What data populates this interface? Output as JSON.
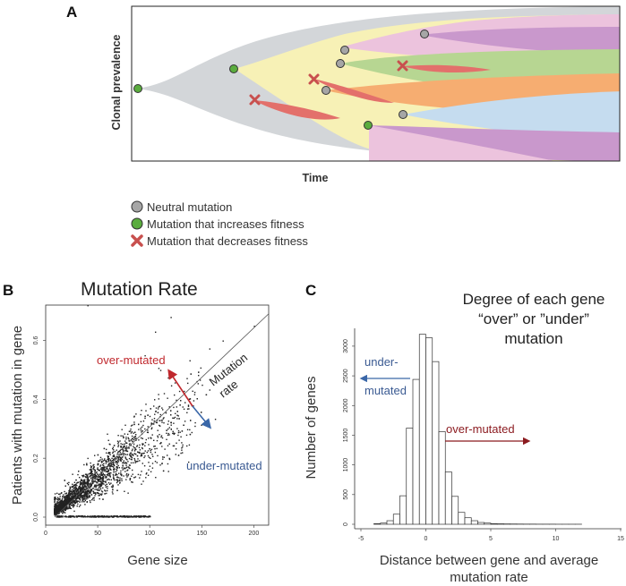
{
  "panelA": {
    "letter": "A",
    "ylabel": "Clonal prevalence",
    "xlabel": "Time",
    "legend": [
      {
        "label": "Neutral mutation",
        "marker": "grey-circle",
        "color": "#a6a6a6"
      },
      {
        "label": "Mutation that increases fitness",
        "marker": "green-circle",
        "color": "#5aac3e"
      },
      {
        "label": "Mutation that decreases fitness",
        "marker": "red-cross",
        "color": "#c8504e"
      }
    ],
    "colors": {
      "grey": "#d3d6d9",
      "yellow": "#f7f1b6",
      "pink": "#ecc3dd",
      "green": "#b7d692",
      "orange": "#f6ad71",
      "purple": "#c998cc",
      "blue": "#c5dcef",
      "red": "#e3706b"
    }
  },
  "panelB": {
    "letter": "B",
    "title": "Mutation Rate",
    "annotations": {
      "over": "over-mutated",
      "under": "under-mutated",
      "line1": "Mutation",
      "line2": "rate"
    },
    "chart_data": {
      "type": "scatter",
      "title": "Mutation Rate",
      "xlabel": "Gene size",
      "ylabel": "Patients with mutation in gene",
      "xlim": [
        0,
        210
      ],
      "ylim": [
        0,
        0.72
      ],
      "xticks": [
        "0",
        "50",
        "100",
        "150",
        "200"
      ],
      "yticks": [
        "0.0",
        "0.2",
        "0.4",
        "0.6"
      ],
      "trend_line": {
        "x": [
          0,
          210
        ],
        "y": [
          0.0,
          0.66
        ]
      },
      "cloud": {
        "x_peak": 30,
        "description": "dense cloud of gene points, highest density near x=20-60, y=0.0-0.2"
      }
    }
  },
  "panelC": {
    "letter": "C",
    "title_lines": [
      "Degree of each gene",
      "“over” or ”under”",
      "mutation"
    ],
    "annotations": {
      "under1": "under-",
      "under2": "mutated",
      "over": "over-mutated"
    },
    "chart_data": {
      "type": "bar",
      "title": "Degree of each gene “over” or ”under” mutation",
      "xlabel_lines": [
        "Distance between gene and average",
        "mutation rate"
      ],
      "ylabel": "Number of genes",
      "xlim": [
        -5,
        15
      ],
      "ylim": [
        0,
        3300
      ],
      "xticks": [
        "-5",
        "0",
        "5",
        "10",
        "15"
      ],
      "yticks": [
        "0",
        "500",
        "1000",
        "1500",
        "2000",
        "2500",
        "3000"
      ],
      "bin_width": 0.5,
      "bin_starts": [
        -4,
        -3.5,
        -3,
        -2.5,
        -2,
        -1.5,
        -1,
        -0.5,
        0,
        0.5,
        1,
        1.5,
        2,
        2.5,
        3,
        3.5,
        4,
        4.5,
        5,
        5.5,
        6,
        6.5,
        7,
        7.5,
        8,
        8.5,
        9,
        9.5,
        10,
        10.5,
        11,
        11.5
      ],
      "values": [
        10,
        20,
        60,
        170,
        480,
        1620,
        2440,
        3200,
        3140,
        2740,
        1560,
        880,
        470,
        200,
        110,
        60,
        30,
        20,
        10,
        8,
        6,
        5,
        4,
        3,
        3,
        2,
        2,
        2,
        1,
        1,
        1,
        1
      ]
    }
  }
}
